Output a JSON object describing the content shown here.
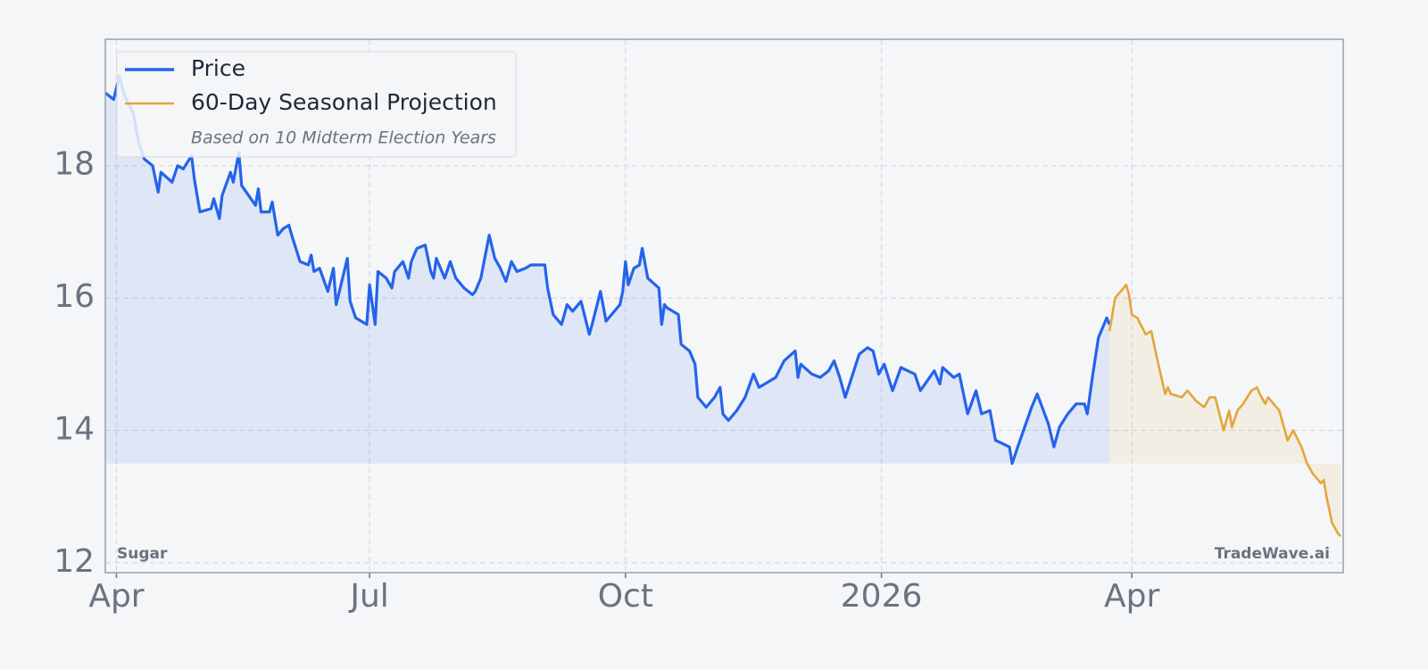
{
  "chart_data": {
    "type": "line",
    "legend_note": "Based on 10 Midterm Election Years",
    "asset_label": "Sugar",
    "watermark": "TradeWave.ai",
    "xlim": [
      -4,
      441
    ],
    "xticks": [
      {
        "value": 0,
        "label": "Apr"
      },
      {
        "value": 91,
        "label": "Jul"
      },
      {
        "value": 183,
        "label": "Oct"
      },
      {
        "value": 275,
        "label": "2026"
      },
      {
        "value": 365,
        "label": "Apr"
      }
    ],
    "ylim": [
      11.85,
      19.91
    ],
    "yticks": [
      12,
      14,
      16,
      18
    ],
    "grid": true,
    "legend": "upper left",
    "series": [
      {
        "name": "Price",
        "color": "#2563eb",
        "x": [
          -4,
          -1,
          1,
          3,
          6,
          8,
          10,
          13,
          15,
          16,
          20,
          22,
          24,
          27,
          28,
          30,
          34,
          35,
          37,
          38,
          41,
          42,
          44,
          45,
          50,
          51,
          52,
          55,
          56,
          58,
          60,
          62,
          63,
          66,
          69,
          70,
          71,
          73,
          76,
          78,
          79,
          83,
          84,
          86,
          90,
          91,
          93,
          94,
          97,
          99,
          100,
          103,
          105,
          106,
          108,
          111,
          113,
          114,
          115,
          118,
          120,
          122,
          125,
          128,
          129,
          131,
          134,
          136,
          138,
          140,
          142,
          144,
          147,
          149,
          154,
          155,
          157,
          160,
          162,
          164,
          167,
          170,
          171,
          174,
          176,
          179,
          181,
          182,
          183,
          184,
          186,
          188,
          189,
          191,
          195,
          196,
          197,
          198,
          202,
          203,
          206,
          208,
          209,
          212,
          215,
          217,
          218,
          220,
          221,
          223,
          226,
          229,
          231,
          237,
          240,
          244,
          245,
          246,
          250,
          253,
          256,
          258,
          260,
          262,
          267,
          270,
          272,
          274,
          276,
          279,
          282,
          287,
          289,
          294,
          296,
          297,
          301,
          303,
          306,
          309,
          311,
          314,
          316,
          321,
          322,
          324,
          329,
          331,
          335,
          337,
          339,
          342,
          345,
          348,
          349,
          351,
          353,
          356,
          357
        ],
        "values": [
          19.1,
          19.0,
          19.35,
          19.05,
          18.8,
          18.35,
          18.1,
          18.0,
          17.6,
          17.9,
          17.75,
          18.0,
          17.95,
          18.15,
          17.8,
          17.3,
          17.35,
          17.5,
          17.2,
          17.55,
          17.9,
          17.75,
          18.2,
          17.7,
          17.4,
          17.65,
          17.3,
          17.3,
          17.45,
          16.95,
          17.05,
          17.1,
          16.95,
          16.55,
          16.5,
          16.65,
          16.4,
          16.45,
          16.1,
          16.45,
          15.9,
          16.6,
          15.95,
          15.7,
          15.6,
          16.2,
          15.6,
          16.4,
          16.3,
          16.15,
          16.4,
          16.55,
          16.3,
          16.55,
          16.75,
          16.8,
          16.4,
          16.3,
          16.6,
          16.3,
          16.55,
          16.3,
          16.15,
          16.05,
          16.1,
          16.3,
          16.95,
          16.6,
          16.45,
          16.25,
          16.55,
          16.4,
          16.45,
          16.5,
          16.5,
          16.15,
          15.75,
          15.6,
          15.9,
          15.8,
          15.95,
          15.45,
          15.6,
          16.1,
          15.65,
          15.8,
          15.9,
          16.1,
          16.55,
          16.2,
          16.45,
          16.5,
          16.75,
          16.3,
          16.15,
          15.6,
          15.9,
          15.85,
          15.75,
          15.3,
          15.2,
          15.0,
          14.5,
          14.35,
          14.5,
          14.65,
          14.25,
          14.15,
          14.2,
          14.3,
          14.5,
          14.85,
          14.65,
          14.8,
          15.05,
          15.2,
          14.8,
          15.0,
          14.85,
          14.8,
          14.9,
          15.05,
          14.8,
          14.5,
          15.15,
          15.25,
          15.2,
          14.85,
          15.0,
          14.6,
          14.95,
          14.85,
          14.6,
          14.9,
          14.7,
          14.95,
          14.8,
          14.85,
          14.25,
          14.6,
          14.25,
          14.3,
          13.85,
          13.75,
          13.5,
          13.75,
          14.35,
          14.55,
          14.1,
          13.75,
          14.05,
          14.25,
          14.4,
          14.4,
          14.25,
          14.85,
          15.4,
          15.7,
          15.6
        ]
      },
      {
        "name": "60-Day Seasonal Projection",
        "color": "#e5a53a",
        "x": [
          357,
          359,
          361,
          363,
          364,
          365,
          367,
          370,
          372,
          374,
          377,
          378,
          379,
          383,
          385,
          388,
          391,
          393,
          395,
          398,
          400,
          401,
          403,
          405,
          408,
          410,
          411,
          413,
          414,
          416,
          418,
          421,
          423,
          426,
          428,
          430,
          433,
          434,
          435,
          437,
          439,
          440
        ],
        "values": [
          15.5,
          16.0,
          16.1,
          16.2,
          16.05,
          15.75,
          15.7,
          15.45,
          15.5,
          15.1,
          14.55,
          14.65,
          14.55,
          14.5,
          14.6,
          14.45,
          14.35,
          14.5,
          14.5,
          14.0,
          14.3,
          14.05,
          14.3,
          14.4,
          14.6,
          14.65,
          14.55,
          14.4,
          14.5,
          14.4,
          14.3,
          13.85,
          14.0,
          13.75,
          13.5,
          13.35,
          13.2,
          13.25,
          13.0,
          12.6,
          12.45,
          12.4
        ]
      }
    ]
  }
}
